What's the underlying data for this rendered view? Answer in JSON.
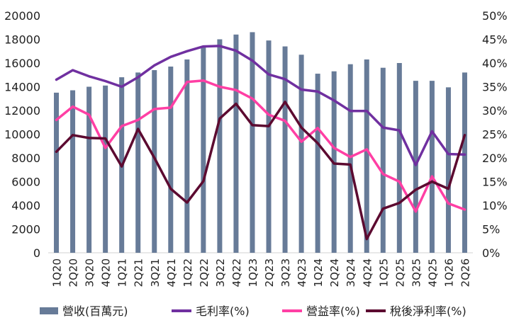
{
  "chart_data": {
    "type": "bar",
    "categories": [
      "1Q20",
      "2Q20",
      "3Q20",
      "4Q20",
      "1Q21",
      "2Q21",
      "3Q21",
      "4Q21",
      "1Q22",
      "2Q22",
      "3Q22",
      "4Q22",
      "1Q23",
      "2Q23",
      "3Q23",
      "4Q23",
      "1Q24",
      "2Q24",
      "3Q24",
      "4Q24",
      "1Q25",
      "2Q25",
      "3Q25",
      "4Q25",
      "1Q26",
      "2Q26"
    ],
    "bar_series": {
      "name": "營收(百萬元)",
      "color": "#677b98",
      "values": [
        13500,
        13700,
        14000,
        14100,
        14800,
        15200,
        15400,
        15700,
        16300,
        17400,
        18000,
        18400,
        18600,
        17900,
        17400,
        16700,
        15100,
        15300,
        15900,
        16300,
        15600,
        16000,
        14500,
        14500,
        13950,
        15200
      ]
    },
    "line_series": [
      {
        "name": "毛利率(%)",
        "color": "#7030a0",
        "values": [
          36.5,
          38.5,
          37.2,
          36.2,
          35.0,
          37.0,
          39.5,
          41.3,
          42.5,
          43.5,
          43.6,
          42.6,
          40.5,
          37.6,
          36.6,
          34.4,
          34.0,
          32.1,
          29.9,
          29.9,
          26.4,
          25.8,
          18.5,
          25.6,
          20.8,
          20.7
        ]
      },
      {
        "name": "營益率(%)",
        "color": "#ff3fa4",
        "values": [
          28.0,
          30.8,
          29.1,
          22.1,
          26.7,
          28.0,
          30.3,
          30.6,
          36.0,
          36.3,
          35.0,
          34.3,
          32.5,
          29.1,
          27.8,
          23.4,
          26.3,
          22.1,
          20.2,
          21.8,
          16.6,
          15.0,
          8.7,
          16.1,
          10.4,
          9.1
        ]
      },
      {
        "name": "稅後淨利率(%)",
        "color": "#5c0a30",
        "values": [
          21.3,
          24.8,
          24.2,
          24.1,
          18.2,
          26.1,
          20.0,
          13.5,
          10.6,
          15.1,
          28.3,
          31.4,
          26.9,
          26.7,
          31.8,
          26.4,
          23.1,
          18.8,
          18.6,
          2.9,
          9.3,
          10.5,
          13.3,
          15.0,
          13.5,
          24.8
        ]
      }
    ],
    "left_axis": {
      "ylim": [
        0,
        20000
      ],
      "ticks": [
        "0",
        "2000",
        "4000",
        "6000",
        "8000",
        "10000",
        "12000",
        "14000",
        "16000",
        "18000",
        "20000"
      ]
    },
    "right_axis": {
      "ylim": [
        0,
        50
      ],
      "ticks": [
        "0%",
        "5%",
        "10%",
        "15%",
        "20%",
        "25%",
        "30%",
        "35%",
        "40%",
        "45%",
        "50%"
      ]
    },
    "grid": false,
    "legend_position": "bottom"
  }
}
